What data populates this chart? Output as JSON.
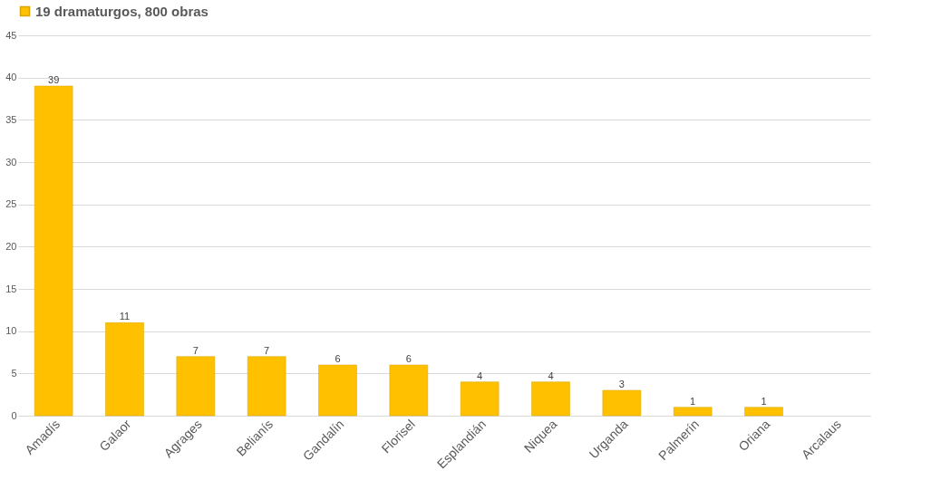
{
  "chart_data": {
    "type": "bar",
    "categories": [
      "Amadís",
      "Galaor",
      "Agrages",
      "Belianís",
      "Gandalín",
      "Florisel",
      "Esplandián",
      "Niquea",
      "Urganda",
      "Palmerín",
      "Oriana",
      "Arcalaus"
    ],
    "series": [
      {
        "name": "19 dramaturgos, 800 obras",
        "color": "#ffc000",
        "values": [
          39,
          11,
          7,
          7,
          6,
          6,
          4,
          4,
          3,
          1,
          1,
          null
        ]
      }
    ],
    "ylim": [
      0,
      45
    ],
    "yticks": [
      0,
      5,
      10,
      15,
      20,
      25,
      30,
      35,
      40,
      45
    ],
    "grid": "y",
    "legend": "top",
    "data_labels": true
  }
}
